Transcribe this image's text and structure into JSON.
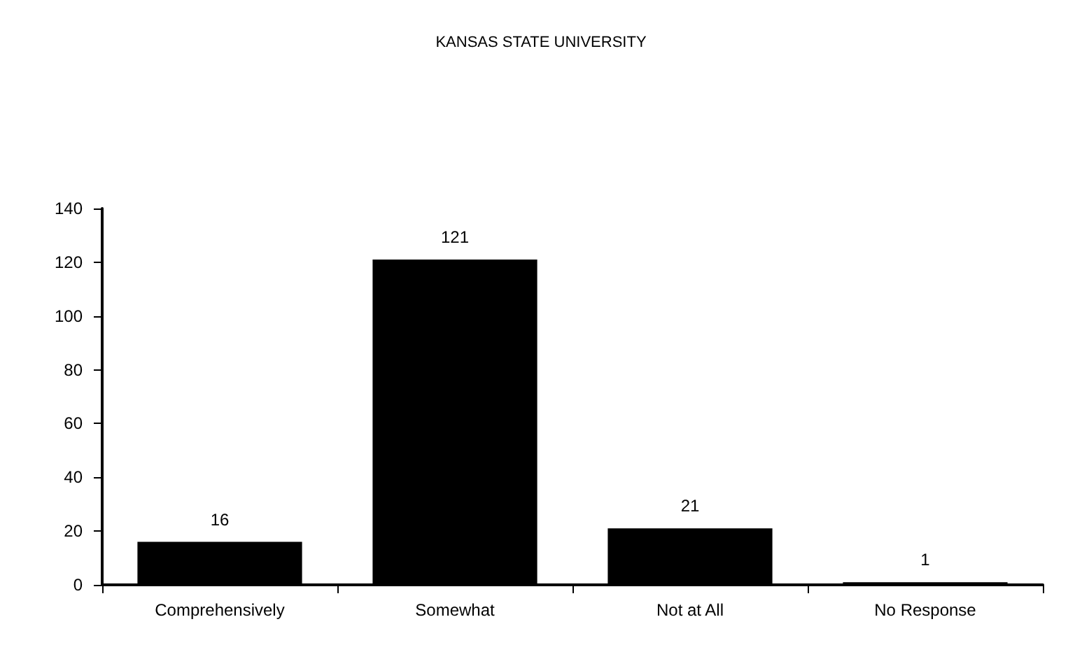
{
  "chart_data": {
    "type": "bar",
    "title": "KANSAS STATE UNIVERSITY",
    "categories": [
      "Comprehensively",
      "Somewhat",
      "Not at All",
      "No Response"
    ],
    "values": [
      16,
      121,
      21,
      1
    ],
    "color": "#000000",
    "ylim": [
      0,
      140
    ],
    "yticks": [
      0,
      20,
      40,
      60,
      80,
      100,
      120,
      140
    ],
    "grid": false,
    "data_labels": true
  }
}
